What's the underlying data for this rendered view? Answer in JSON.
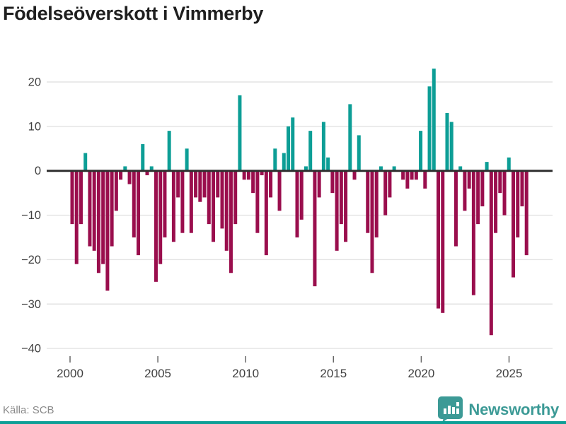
{
  "title": "Födelseöverskott i Vimmerby",
  "source": "Källa: SCB",
  "branding": {
    "logo_text": "Newsworthy",
    "logo_icon": "bar-chart-pin-icon",
    "accent": "#3c9a96"
  },
  "chart_data": {
    "type": "bar",
    "title": "Födelseöverskott i Vimmerby",
    "xlabel": "",
    "ylabel": "",
    "frequency": "quarterly",
    "start_period": "2000 Q1",
    "end_period": "2025 Q4",
    "x_tick_labels": [
      "2000",
      "2005",
      "2010",
      "2015",
      "2020",
      "2025"
    ],
    "y_ticks": [
      20,
      10,
      0,
      -10,
      -20,
      -30,
      -40
    ],
    "ylim": [
      -42,
      25
    ],
    "grid": true,
    "legend": false,
    "colors": {
      "positive": "#0d9e96",
      "negative": "#9a0e4d",
      "gridline": "#e3e3e3",
      "zero_line": "#2f2f2f",
      "tick_text": "#404040"
    },
    "series": [
      {
        "name": "Födelseöverskott",
        "values": [
          -12,
          -21,
          -12,
          4,
          -17,
          -18,
          -23,
          -21,
          -27,
          -17,
          -9,
          -2,
          1,
          -3,
          -15,
          -19,
          6,
          -1,
          1,
          -25,
          -21,
          -15,
          9,
          -16,
          -6,
          -14,
          5,
          -14,
          -6,
          -7,
          -6,
          -12,
          -16,
          -6,
          -13,
          -18,
          -23,
          -12,
          17,
          -2,
          -2,
          -5,
          -14,
          -1,
          -19,
          -6,
          5,
          -9,
          4,
          10,
          12,
          -15,
          -11,
          1,
          9,
          -26,
          -6,
          11,
          3,
          -5,
          -18,
          -12,
          -16,
          15,
          -2,
          8,
          0,
          -14,
          -23,
          -15,
          1,
          -10,
          -6,
          1,
          0,
          -2,
          -4,
          -2,
          -2,
          9,
          -4,
          19,
          23,
          -31,
          -32,
          13,
          11,
          -17,
          1,
          -9,
          -4,
          -28,
          -12,
          -8,
          2,
          -37,
          -14,
          -5,
          -10,
          3,
          -24,
          -15,
          -8,
          -19
        ]
      }
    ]
  }
}
